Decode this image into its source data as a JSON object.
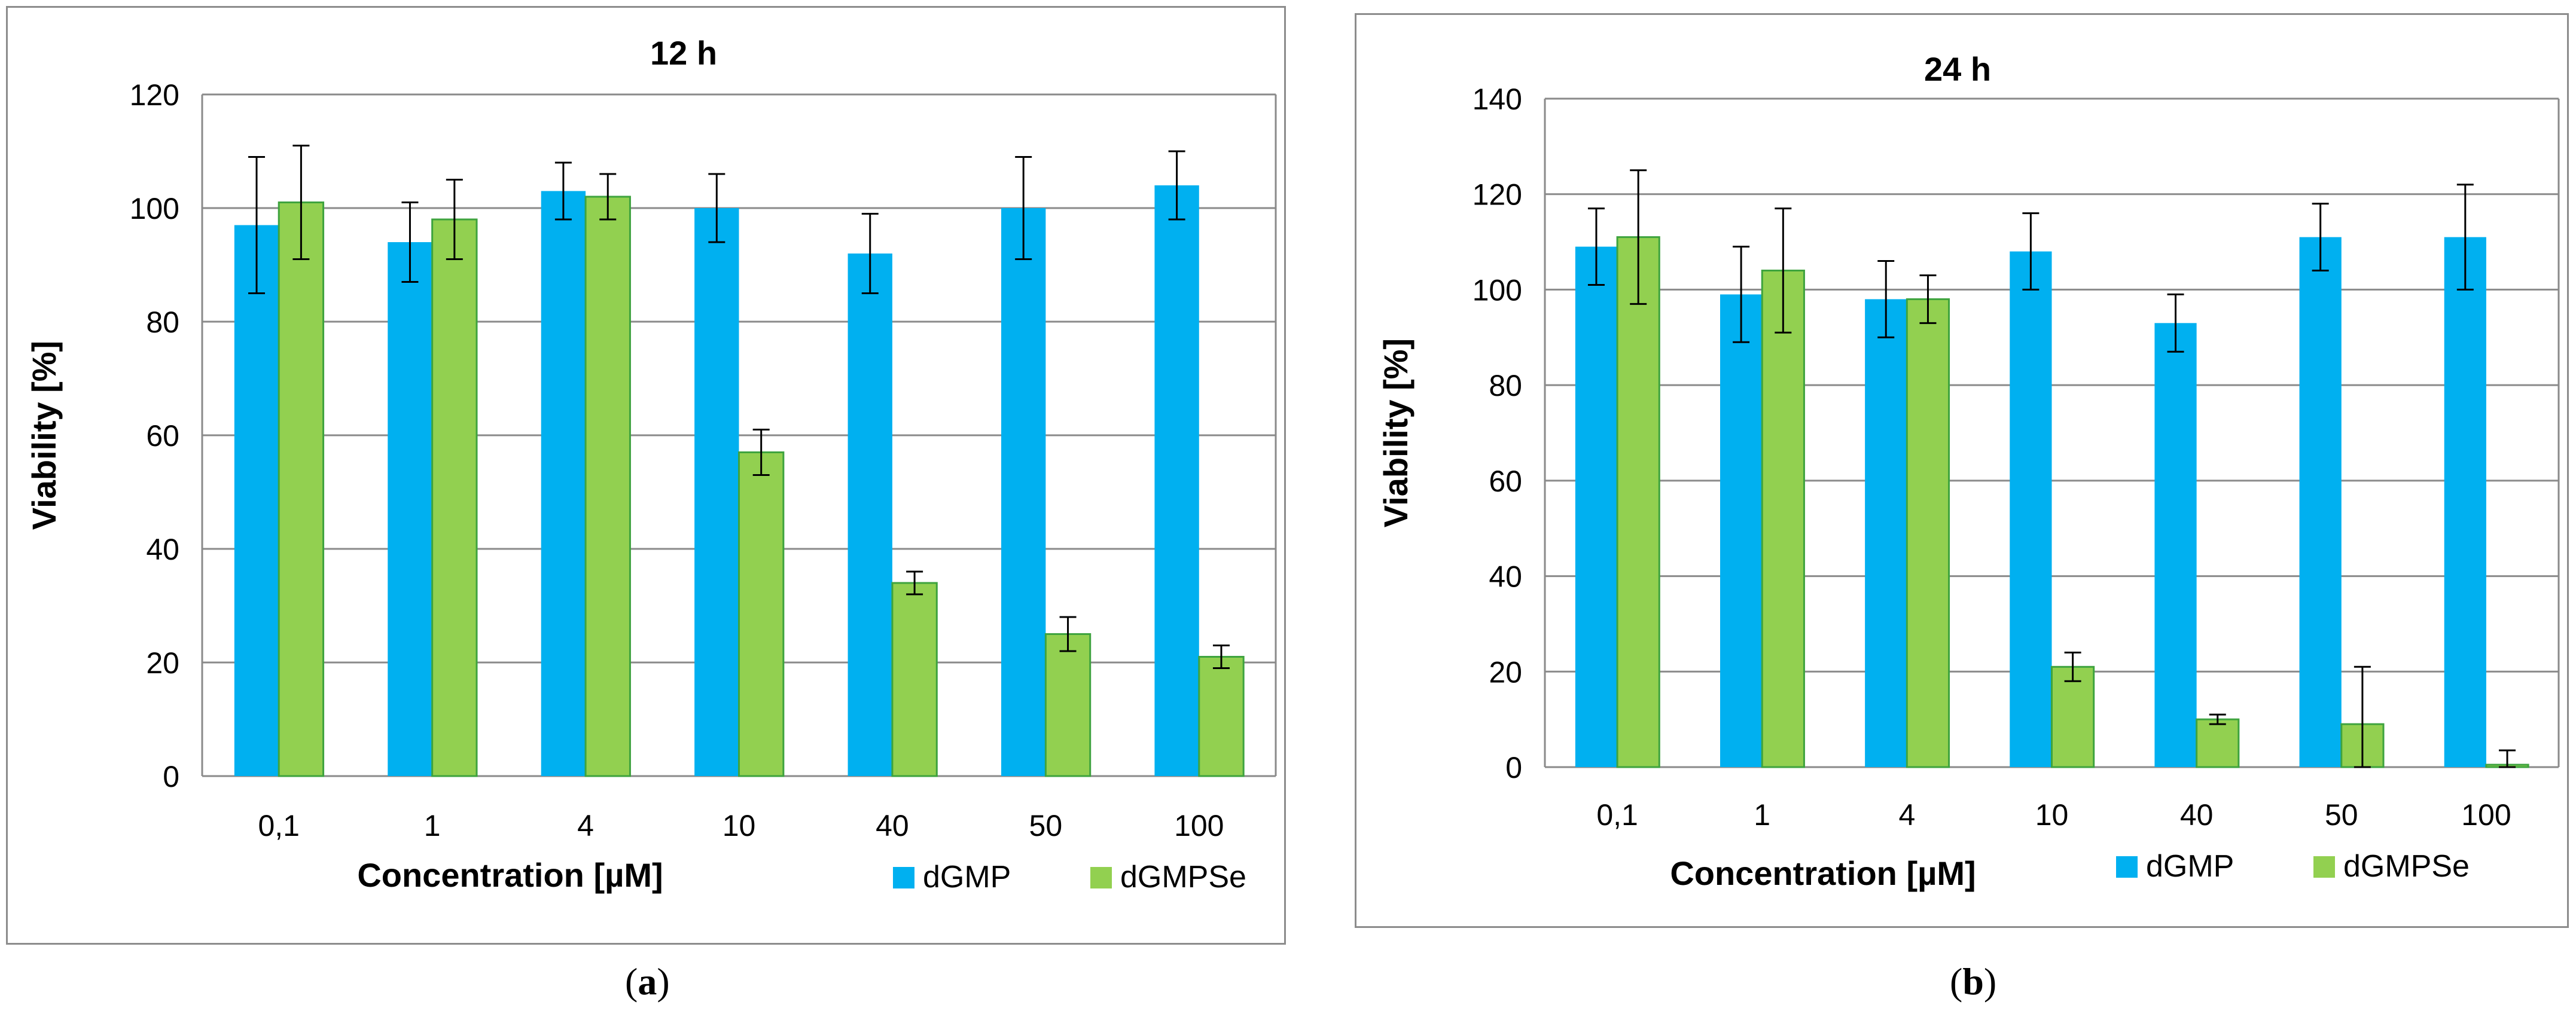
{
  "chart_data": [
    {
      "type": "bar",
      "panel": "a",
      "title": "12 h",
      "xlabel": "Concentration [µM]",
      "ylabel": "Viability [%]",
      "ylim": [
        0,
        120
      ],
      "yticks": [
        0,
        20,
        40,
        60,
        80,
        100,
        120
      ],
      "grid": true,
      "legend": "bottom-right",
      "categories": [
        "0,1",
        "1",
        "4",
        "10",
        "40",
        "50",
        "100"
      ],
      "series": [
        {
          "name": "dGMP",
          "color": "#00b0f0",
          "values": [
            97,
            94,
            103,
            100,
            92,
            100,
            104
          ],
          "errors": [
            12,
            7,
            5,
            6,
            7,
            9,
            6
          ]
        },
        {
          "name": "dGMPSe",
          "color": "#92d050",
          "values": [
            101,
            98,
            102,
            57,
            34,
            25,
            21
          ],
          "errors": [
            10,
            7,
            4,
            4,
            2,
            3,
            2
          ]
        }
      ],
      "caption": "a"
    },
    {
      "type": "bar",
      "panel": "b",
      "title": "24 h",
      "xlabel": "Concentration [µM]",
      "ylabel": "Viability [%]",
      "ylim": [
        0,
        140
      ],
      "yticks": [
        0,
        20,
        40,
        60,
        80,
        100,
        120,
        140
      ],
      "grid": true,
      "legend": "bottom-right",
      "categories": [
        "0,1",
        "1",
        "4",
        "10",
        "40",
        "50",
        "100"
      ],
      "series": [
        {
          "name": "dGMP",
          "color": "#00b0f0",
          "values": [
            109,
            99,
            98,
            108,
            93,
            111,
            111
          ],
          "errors": [
            8,
            10,
            8,
            8,
            6,
            7,
            11
          ]
        },
        {
          "name": "dGMPSe",
          "color": "#92d050",
          "values": [
            111,
            104,
            98,
            21,
            10,
            9,
            0.5
          ],
          "errors": [
            14,
            13,
            5,
            3,
            1,
            12,
            3
          ]
        }
      ],
      "caption": "b"
    }
  ]
}
